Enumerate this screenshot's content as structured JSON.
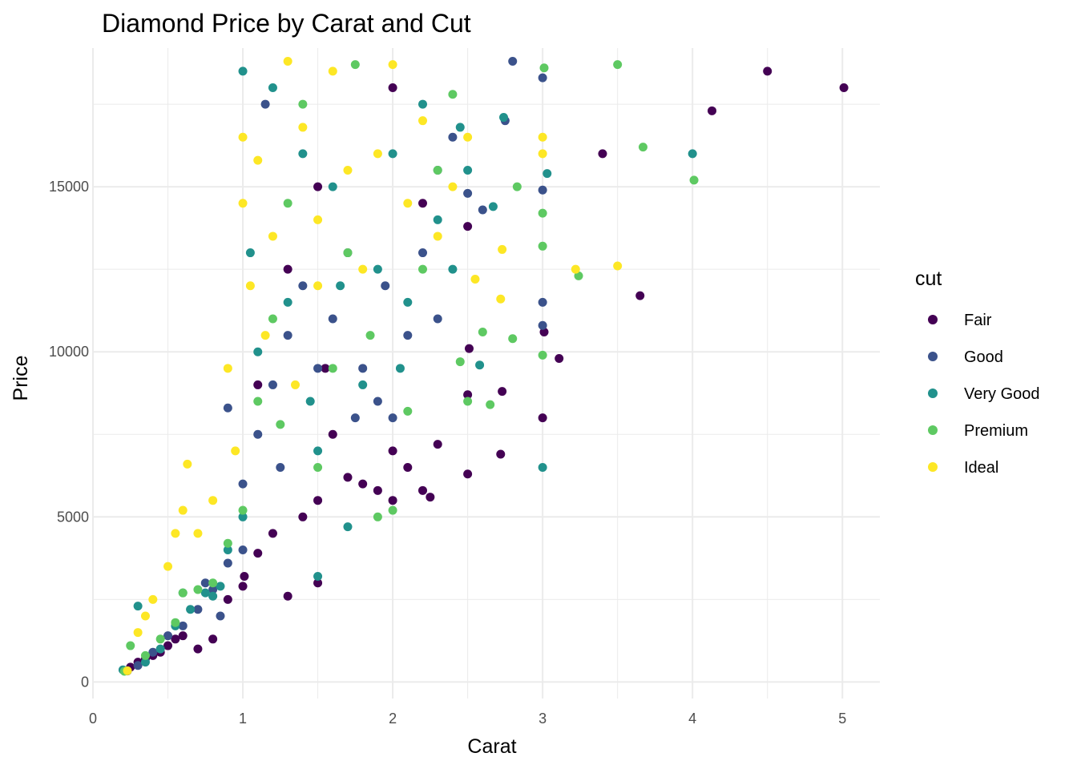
{
  "chart_data": {
    "type": "scatter",
    "title": "Diamond Price by Carat and Cut",
    "xlabel": "Carat",
    "ylabel": "Price",
    "xlim": [
      0,
      5.25
    ],
    "ylim": [
      -500,
      19200
    ],
    "x_ticks": [
      0,
      1,
      2,
      3,
      4,
      5
    ],
    "y_ticks": [
      0,
      5000,
      10000,
      15000
    ],
    "x_tick_labels": [
      "0",
      "1",
      "2",
      "3",
      "4",
      "5"
    ],
    "y_tick_labels": [
      "0",
      "5000",
      "10000",
      "15000"
    ],
    "grid": true,
    "legend": {
      "title": "cut",
      "position": "right"
    },
    "series": [
      {
        "name": "Fair",
        "color": "#440154",
        "points": [
          [
            0.22,
            337
          ],
          [
            0.25,
            450
          ],
          [
            0.3,
            600
          ],
          [
            0.35,
            700
          ],
          [
            0.4,
            800
          ],
          [
            0.5,
            1100
          ],
          [
            0.6,
            1400
          ],
          [
            0.7,
            1000
          ],
          [
            0.8,
            1300
          ],
          [
            0.9,
            2500
          ],
          [
            1.0,
            2900
          ],
          [
            1.01,
            3200
          ],
          [
            1.1,
            3900
          ],
          [
            1.2,
            4500
          ],
          [
            1.3,
            2600
          ],
          [
            1.4,
            5000
          ],
          [
            1.5,
            3000
          ],
          [
            1.5,
            5500
          ],
          [
            1.6,
            7500
          ],
          [
            1.7,
            6200
          ],
          [
            1.8,
            6000
          ],
          [
            1.9,
            5800
          ],
          [
            2.0,
            5500
          ],
          [
            2.0,
            7000
          ],
          [
            2.1,
            6500
          ],
          [
            2.2,
            5800
          ],
          [
            2.25,
            5600
          ],
          [
            2.3,
            7200
          ],
          [
            2.5,
            6300
          ],
          [
            2.5,
            8700
          ],
          [
            2.51,
            10100
          ],
          [
            2.72,
            6900
          ],
          [
            2.73,
            8800
          ],
          [
            3.0,
            8000
          ],
          [
            3.01,
            10600
          ],
          [
            3.11,
            9800
          ],
          [
            3.4,
            16000
          ],
          [
            3.65,
            11700
          ],
          [
            4.13,
            17300
          ],
          [
            4.5,
            18500
          ],
          [
            5.01,
            18000
          ],
          [
            1.1,
            9000
          ],
          [
            1.3,
            12500
          ],
          [
            1.5,
            15000
          ],
          [
            2.0,
            18000
          ],
          [
            2.5,
            13800
          ],
          [
            2.2,
            14500
          ],
          [
            1.55,
            9500
          ],
          [
            0.45,
            900
          ],
          [
            0.55,
            1300
          ]
        ]
      },
      {
        "name": "Good",
        "color": "#3b528b",
        "points": [
          [
            0.23,
            335
          ],
          [
            0.3,
            500
          ],
          [
            0.4,
            900
          ],
          [
            0.5,
            1400
          ],
          [
            0.6,
            1700
          ],
          [
            0.7,
            2200
          ],
          [
            0.8,
            2800
          ],
          [
            0.9,
            3600
          ],
          [
            0.9,
            8300
          ],
          [
            1.0,
            4000
          ],
          [
            1.0,
            6000
          ],
          [
            1.1,
            7500
          ],
          [
            1.2,
            9000
          ],
          [
            1.3,
            10500
          ],
          [
            1.4,
            12000
          ],
          [
            1.5,
            9500
          ],
          [
            1.6,
            11000
          ],
          [
            1.7,
            13000
          ],
          [
            1.8,
            9500
          ],
          [
            1.9,
            8500
          ],
          [
            2.0,
            8000
          ],
          [
            2.1,
            10500
          ],
          [
            2.2,
            13000
          ],
          [
            2.3,
            15500
          ],
          [
            2.4,
            16500
          ],
          [
            2.5,
            14800
          ],
          [
            2.6,
            14300
          ],
          [
            2.75,
            17000
          ],
          [
            2.8,
            18800
          ],
          [
            3.0,
            11500
          ],
          [
            3.0,
            10800
          ],
          [
            3.0,
            14900
          ],
          [
            3.0,
            18300
          ],
          [
            1.15,
            17500
          ],
          [
            0.75,
            3000
          ],
          [
            1.25,
            6500
          ],
          [
            1.75,
            8000
          ],
          [
            2.3,
            11000
          ],
          [
            0.85,
            2000
          ],
          [
            1.95,
            12000
          ]
        ]
      },
      {
        "name": "Very Good",
        "color": "#21918c",
        "points": [
          [
            0.2,
            367
          ],
          [
            0.3,
            2300
          ],
          [
            0.35,
            600
          ],
          [
            0.45,
            1000
          ],
          [
            0.55,
            1700
          ],
          [
            0.65,
            2200
          ],
          [
            0.75,
            2700
          ],
          [
            0.85,
            2900
          ],
          [
            0.9,
            4000
          ],
          [
            1.0,
            5000
          ],
          [
            1.0,
            18500
          ],
          [
            1.05,
            13000
          ],
          [
            1.1,
            10000
          ],
          [
            1.2,
            18000
          ],
          [
            1.3,
            11500
          ],
          [
            1.4,
            16000
          ],
          [
            1.5,
            3200
          ],
          [
            1.5,
            7000
          ],
          [
            1.6,
            15000
          ],
          [
            1.7,
            4700
          ],
          [
            1.8,
            9000
          ],
          [
            1.9,
            12500
          ],
          [
            2.0,
            16000
          ],
          [
            2.1,
            11500
          ],
          [
            2.2,
            17500
          ],
          [
            2.3,
            14000
          ],
          [
            2.4,
            12500
          ],
          [
            2.5,
            15500
          ],
          [
            2.58,
            9600
          ],
          [
            2.67,
            14400
          ],
          [
            2.74,
            17100
          ],
          [
            3.0,
            6500
          ],
          [
            3.03,
            15400
          ],
          [
            4.0,
            16000
          ],
          [
            0.6,
            2700
          ],
          [
            0.8,
            2600
          ],
          [
            1.45,
            8500
          ],
          [
            1.65,
            12000
          ],
          [
            2.05,
            9500
          ],
          [
            2.45,
            16800
          ]
        ]
      },
      {
        "name": "Premium",
        "color": "#5ec962",
        "points": [
          [
            0.21,
            326
          ],
          [
            0.25,
            1100
          ],
          [
            0.35,
            800
          ],
          [
            0.45,
            1300
          ],
          [
            0.55,
            1800
          ],
          [
            0.6,
            2700
          ],
          [
            0.7,
            2800
          ],
          [
            0.8,
            3000
          ],
          [
            0.9,
            4200
          ],
          [
            1.0,
            5200
          ],
          [
            1.1,
            8500
          ],
          [
            1.2,
            11000
          ],
          [
            1.3,
            14500
          ],
          [
            1.4,
            17500
          ],
          [
            1.5,
            6500
          ],
          [
            1.6,
            9500
          ],
          [
            1.7,
            13000
          ],
          [
            1.75,
            18700
          ],
          [
            1.9,
            5000
          ],
          [
            2.0,
            5200
          ],
          [
            2.1,
            8200
          ],
          [
            2.2,
            12500
          ],
          [
            2.3,
            15500
          ],
          [
            2.4,
            17800
          ],
          [
            2.5,
            8500
          ],
          [
            2.6,
            10600
          ],
          [
            2.65,
            8400
          ],
          [
            2.8,
            10400
          ],
          [
            2.83,
            15000
          ],
          [
            3.0,
            9900
          ],
          [
            3.0,
            13200
          ],
          [
            3.0,
            14200
          ],
          [
            3.01,
            18600
          ],
          [
            3.24,
            12300
          ],
          [
            3.5,
            18700
          ],
          [
            3.67,
            16200
          ],
          [
            4.01,
            15200
          ],
          [
            2.45,
            9700
          ],
          [
            1.85,
            10500
          ],
          [
            1.25,
            7800
          ]
        ]
      },
      {
        "name": "Ideal",
        "color": "#fde725",
        "points": [
          [
            0.23,
            340
          ],
          [
            0.3,
            1500
          ],
          [
            0.35,
            2000
          ],
          [
            0.4,
            2500
          ],
          [
            0.5,
            3500
          ],
          [
            0.55,
            4500
          ],
          [
            0.6,
            5200
          ],
          [
            0.63,
            6600
          ],
          [
            0.7,
            4500
          ],
          [
            0.8,
            5500
          ],
          [
            0.9,
            9500
          ],
          [
            1.0,
            14500
          ],
          [
            1.0,
            16500
          ],
          [
            1.05,
            12000
          ],
          [
            1.1,
            15800
          ],
          [
            1.2,
            13500
          ],
          [
            1.3,
            18800
          ],
          [
            1.4,
            16800
          ],
          [
            1.5,
            14000
          ],
          [
            1.5,
            12000
          ],
          [
            1.6,
            18500
          ],
          [
            1.7,
            15500
          ],
          [
            1.8,
            12500
          ],
          [
            1.9,
            16000
          ],
          [
            2.0,
            18700
          ],
          [
            2.1,
            14500
          ],
          [
            2.2,
            17000
          ],
          [
            2.3,
            13500
          ],
          [
            2.4,
            15000
          ],
          [
            2.5,
            16500
          ],
          [
            2.55,
            12200
          ],
          [
            2.72,
            11600
          ],
          [
            2.73,
            13100
          ],
          [
            3.0,
            16000
          ],
          [
            3.0,
            16500
          ],
          [
            3.22,
            12500
          ],
          [
            3.5,
            12600
          ],
          [
            1.15,
            10500
          ],
          [
            1.35,
            9000
          ],
          [
            0.95,
            7000
          ]
        ]
      }
    ]
  }
}
